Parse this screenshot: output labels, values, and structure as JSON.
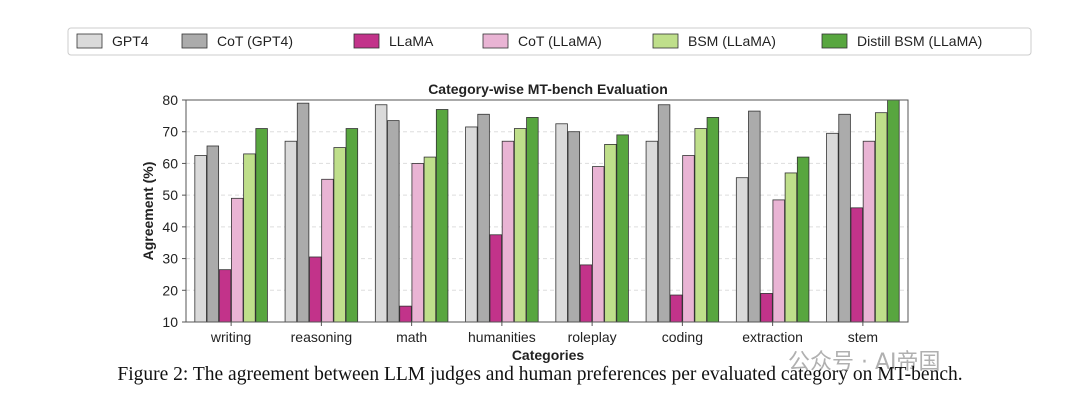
{
  "chart_data": {
    "type": "bar",
    "title": "Category-wise MT-bench Evaluation",
    "xlabel": "Categories",
    "ylabel": "Agreement (%)",
    "ylim": [
      10,
      80
    ],
    "yticks": [
      10,
      20,
      30,
      40,
      50,
      60,
      70,
      80
    ],
    "grid": true,
    "legend_position": "top",
    "categories": [
      "writing",
      "reasoning",
      "math",
      "humanities",
      "roleplay",
      "coding",
      "extraction",
      "stem"
    ],
    "series": [
      {
        "name": "GPT4",
        "color": "#dadada",
        "values": [
          62.5,
          67,
          78.5,
          71.5,
          72.5,
          67,
          55.5,
          69.5
        ]
      },
      {
        "name": "CoT (GPT4)",
        "color": "#ababab",
        "values": [
          65.5,
          79,
          73.5,
          75.5,
          70,
          78.5,
          76.5,
          75.5
        ]
      },
      {
        "name": "LLaMA",
        "color": "#c2338a",
        "values": [
          26.5,
          30.5,
          15,
          37.5,
          28,
          18.5,
          19,
          46
        ]
      },
      {
        "name": "CoT (LLaMA)",
        "color": "#e9b4d4",
        "values": [
          49,
          55,
          60,
          67,
          59,
          62.5,
          48.5,
          67
        ]
      },
      {
        "name": "BSM (LLaMA)",
        "color": "#bfdf8b",
        "values": [
          63,
          65,
          62,
          71,
          66,
          71,
          57,
          76
        ]
      },
      {
        "name": "Distill BSM (LLaMA)",
        "color": "#58a63f",
        "values": [
          71,
          71,
          77,
          74.5,
          69,
          74.5,
          62,
          80
        ]
      }
    ]
  },
  "caption": "Figure 2: The agreement between LLM judges and human preferences per evaluated category on MT-bench.",
  "watermark": "公众号 · AI帝国"
}
